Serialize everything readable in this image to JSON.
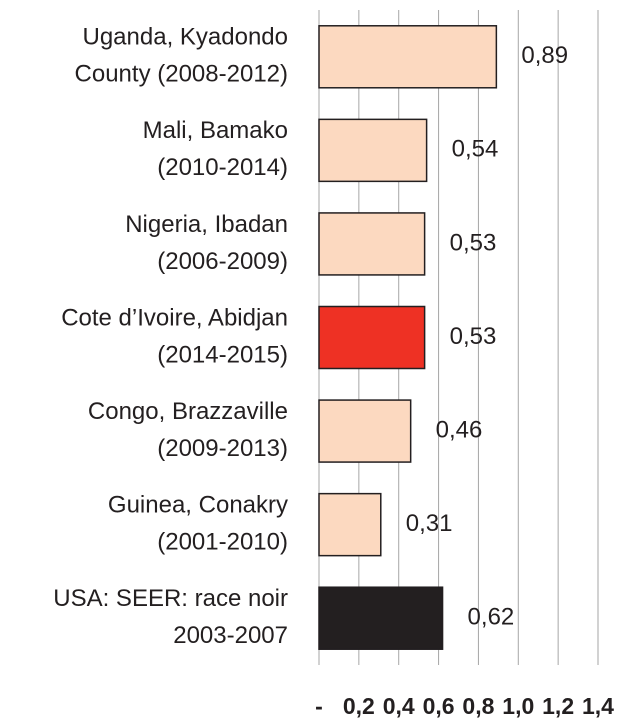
{
  "chart_data": {
    "type": "hbar",
    "categories": [
      [
        "Uganda, Kyadondo",
        "County (2008-2012)"
      ],
      [
        "Mali, Bamako",
        "(2010-2014)"
      ],
      [
        "Nigeria, Ibadan",
        "(2006-2009)"
      ],
      [
        "Cote d’Ivoire, Abidjan",
        "(2014-2015)"
      ],
      [
        "Congo, Brazzaville",
        "(2009-2013)"
      ],
      [
        "Guinea, Conakry",
        "(2001-2010)"
      ],
      [
        "USA: SEER: race noir",
        "2003-2007"
      ]
    ],
    "values": [
      0.89,
      0.54,
      0.53,
      0.53,
      0.46,
      0.31,
      0.62
    ],
    "value_labels": [
      "0,89",
      "0,54",
      "0,53",
      "0,53",
      "0,46",
      "0,31",
      "0,62"
    ],
    "colors": [
      "#fcd9c0",
      "#fcd9c0",
      "#fcd9c0",
      "#ee3124",
      "#fcd9c0",
      "#fcd9c0",
      "#231f20"
    ],
    "xlim": [
      0,
      1.4
    ],
    "xticks": [
      {
        "value": 0,
        "label": "-"
      },
      {
        "value": 0.2,
        "label": "0,2"
      },
      {
        "value": 0.4,
        "label": "0,4"
      },
      {
        "value": 0.6,
        "label": "0,6"
      },
      {
        "value": 0.8,
        "label": "0,8"
      },
      {
        "value": 1.0,
        "label": "1,0"
      },
      {
        "value": 1.2,
        "label": "1,2"
      },
      {
        "value": 1.4,
        "label": "1,4"
      }
    ],
    "grid": true
  }
}
